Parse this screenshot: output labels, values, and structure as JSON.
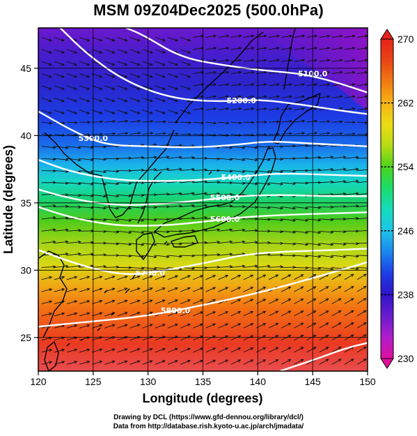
{
  "title": "MSM 09Z04Dec2025 (500.0hPa)",
  "map": {
    "lon_range": [
      120,
      150
    ],
    "lat_range": [
      22.5,
      48
    ],
    "x_ticks": [
      120,
      125,
      130,
      135,
      140,
      145,
      150
    ],
    "x_tick_labels": [
      "120",
      "125",
      "130",
      "135",
      "140",
      "145",
      "150"
    ],
    "y_ticks": [
      25,
      30,
      35,
      40,
      45
    ],
    "y_tick_labels": [
      "25",
      "30",
      "35",
      "40",
      "45"
    ],
    "xlabel": "Longitude (degrees)",
    "ylabel": "Latitude  (degrees)",
    "grid": true,
    "shading": "temperature",
    "vectors": "wind"
  },
  "contours": [
    {
      "label": "5100.0",
      "points": [
        [
          128,
          48
        ],
        [
          129.5,
          47.5
        ],
        [
          133,
          45.8
        ],
        [
          137,
          45.2
        ],
        [
          141,
          44.8
        ],
        [
          144,
          44.6
        ],
        [
          147,
          44.0
        ],
        [
          150,
          43.2
        ]
      ],
      "label_at": [
        145,
        44.6
      ]
    },
    {
      "label": "5200.0",
      "points": [
        [
          122,
          48
        ],
        [
          124.5,
          46
        ],
        [
          128,
          44
        ],
        [
          132,
          42.8
        ],
        [
          136,
          42.5
        ],
        [
          140,
          42.7
        ],
        [
          144,
          42.3
        ],
        [
          148,
          41.8
        ],
        [
          150,
          41.6
        ]
      ],
      "label_at": [
        138.5,
        42.6
      ]
    },
    {
      "label": "5300.0",
      "points": [
        [
          120,
          41.8
        ],
        [
          123,
          40.4
        ],
        [
          126,
          39.3
        ],
        [
          130,
          39.2
        ],
        [
          134,
          39.1
        ],
        [
          138,
          39.3
        ],
        [
          141,
          39.6
        ],
        [
          145,
          39.4
        ],
        [
          150,
          39.2
        ]
      ],
      "label_at": [
        125,
        39.8
      ]
    },
    {
      "label": "5400.0",
      "points": [
        [
          120,
          38.2
        ],
        [
          123,
          37.3
        ],
        [
          127,
          36.7
        ],
        [
          131,
          36.6
        ],
        [
          135,
          36.7
        ],
        [
          139,
          37.0
        ],
        [
          142,
          37.2
        ],
        [
          146,
          37.1
        ],
        [
          150,
          37.0
        ]
      ],
      "label_at": [
        138,
        36.9
      ]
    },
    {
      "label": "5500.0",
      "points": [
        [
          120,
          36.0
        ],
        [
          123,
          35.3
        ],
        [
          127,
          34.8
        ],
        [
          131,
          34.9
        ],
        [
          135,
          35.2
        ],
        [
          138,
          35.5
        ],
        [
          142,
          35.6
        ],
        [
          146,
          35.5
        ],
        [
          150,
          35.5
        ]
      ],
      "label_at": [
        137,
        35.4
      ]
    },
    {
      "label": "5600.0",
      "points": [
        [
          120,
          34.7
        ],
        [
          123,
          33.9
        ],
        [
          127,
          33.3
        ],
        [
          131,
          33.3
        ],
        [
          134,
          33.5
        ],
        [
          138,
          33.9
        ],
        [
          142,
          34.1
        ],
        [
          146,
          34.2
        ],
        [
          150,
          34.3
        ]
      ],
      "label_at": [
        137,
        33.8
      ]
    },
    {
      "label": "5700.0",
      "points": [
        [
          120,
          31.5
        ],
        [
          124,
          30.3
        ],
        [
          128,
          29.6
        ],
        [
          131,
          29.9
        ],
        [
          135,
          30.5
        ],
        [
          139,
          31.2
        ],
        [
          143,
          31.4
        ],
        [
          147,
          31.5
        ],
        [
          150,
          31.6
        ]
      ],
      "label_at": [
        130.2,
        29.8
      ]
    },
    {
      "label": "5800.0",
      "points": [
        [
          120,
          25.8
        ],
        [
          125,
          26.2
        ],
        [
          130,
          26.6
        ],
        [
          135,
          27.4
        ],
        [
          140,
          28.3
        ],
        [
          145,
          29.4
        ],
        [
          150,
          30.6
        ]
      ],
      "label_at": [
        132.5,
        27.0
      ]
    },
    {
      "label": "",
      "points": [
        [
          142,
          22.5
        ],
        [
          145,
          23.3
        ],
        [
          148,
          24.2
        ],
        [
          150,
          24.6
        ]
      ],
      "label_at": null
    }
  ],
  "colorbar": {
    "min": 230,
    "max": 270,
    "tick_values": [
      230,
      238,
      246,
      254,
      262,
      270
    ],
    "tick_labels": [
      "230",
      "238",
      "246",
      "254",
      "262",
      "270"
    ],
    "colors": [
      "#e0109e",
      "#b01ccb",
      "#6a1ccf",
      "#3014c8",
      "#1c3ee8",
      "#1a86ee",
      "#1cc4e8",
      "#16dcbc",
      "#1adc6c",
      "#4cd41c",
      "#b8dc14",
      "#ecdc14",
      "#f4b414",
      "#f27a12",
      "#ea4416",
      "#e8221a"
    ]
  },
  "credits": {
    "line1": "Drawing by DCL (https://www.gfd-dennou.org/library/dcl/)",
    "line2": "Data from http://database.rish.kyoto-u.ac.jp/arch/jmadata/"
  }
}
